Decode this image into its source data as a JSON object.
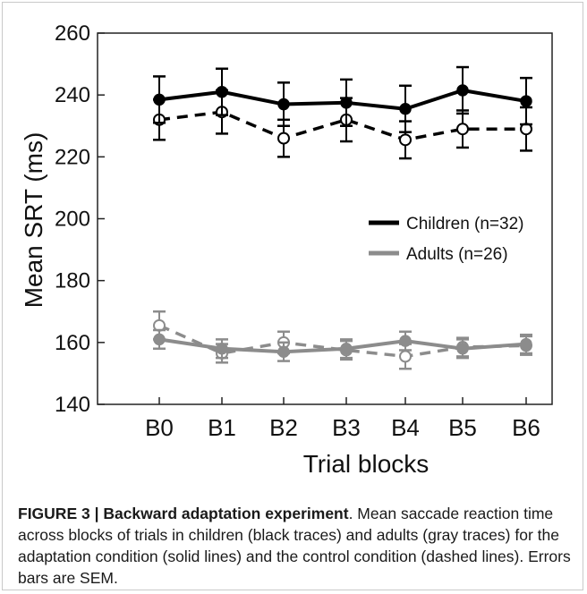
{
  "chart_data": {
    "type": "line",
    "xlabel": "Trial blocks",
    "ylabel": "Mean SRT (ms)",
    "ylim": [
      140,
      260
    ],
    "yticks": [
      140,
      160,
      180,
      200,
      220,
      240,
      260
    ],
    "categories": [
      "B0",
      "B1",
      "B2",
      "B3",
      "B4",
      "B5",
      "B6"
    ],
    "grid": false,
    "legend_position": "center-right",
    "legend": [
      {
        "label": "Children (n=32)",
        "color": "#000000"
      },
      {
        "label": "Adults (n=26)",
        "color": "#8c8c8c"
      }
    ],
    "series": [
      {
        "group": "children",
        "condition": "adaptation",
        "style": "solid",
        "marker": "filled",
        "color": "#000000",
        "values": [
          238.5,
          241,
          237,
          237.5,
          235.5,
          241.5,
          238
        ],
        "errors": [
          7.5,
          7.5,
          7,
          7.5,
          7.5,
          7.5,
          7.5
        ]
      },
      {
        "group": "children",
        "condition": "control",
        "style": "dashed",
        "marker": "open",
        "color": "#000000",
        "values": [
          232,
          234.5,
          226,
          232,
          225.5,
          229,
          229
        ],
        "errors": [
          6.5,
          7,
          6,
          7,
          6,
          6,
          7
        ]
      },
      {
        "group": "adults",
        "condition": "adaptation",
        "style": "solid",
        "marker": "filled",
        "color": "#8c8c8c",
        "values": [
          161,
          158,
          157,
          158,
          160.5,
          158,
          159.5
        ],
        "errors": [
          3,
          3,
          3,
          3,
          3,
          3,
          3
        ]
      },
      {
        "group": "adults",
        "condition": "control",
        "style": "dashed",
        "marker": "open",
        "color": "#8c8c8c",
        "values": [
          165.5,
          156.5,
          160,
          157.5,
          155.5,
          158.5,
          159
        ],
        "errors": [
          4.5,
          3,
          3.5,
          3,
          4,
          3,
          3
        ]
      }
    ]
  },
  "caption": {
    "lead": "FIGURE 3 | Backward adaptation experiment",
    "text": ". Mean saccade reaction time across blocks of trials in children (black traces) and adults (gray traces) for the adaptation condition (solid lines) and the control condition (dashed lines). Errors bars are SEM."
  }
}
